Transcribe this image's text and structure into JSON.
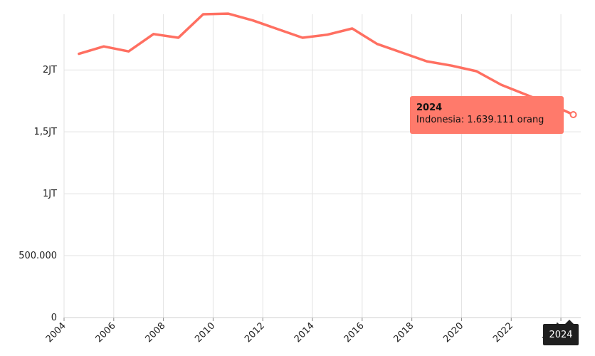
{
  "chart_data": {
    "type": "line",
    "x": [
      2004.6,
      2005.6,
      2006.6,
      2007.6,
      2008.6,
      2009.6,
      2010.6,
      2011.6,
      2012.6,
      2013.6,
      2014.6,
      2015.6,
      2016.6,
      2017.6,
      2018.6,
      2019.6,
      2020.6,
      2021.6,
      2022.6,
      2023.6,
      2024.5
    ],
    "series": [
      {
        "name": "Indonesia",
        "color": "#ff6f61",
        "values": [
          2130000,
          2190000,
          2150000,
          2290000,
          2260000,
          2450000,
          2455000,
          2400000,
          2330000,
          2260000,
          2285000,
          2335000,
          2210000,
          2140000,
          2070000,
          2035000,
          1990000,
          1880000,
          1800000,
          1720000,
          1639111
        ]
      }
    ],
    "xlim": [
      2004,
      2024.8
    ],
    "ylim": [
      0,
      2450000
    ],
    "x_ticks": [
      {
        "value": 2004,
        "label": "2004"
      },
      {
        "value": 2006,
        "label": "2006"
      },
      {
        "value": 2008,
        "label": "2008"
      },
      {
        "value": 2010,
        "label": "2010"
      },
      {
        "value": 2012,
        "label": "2012"
      },
      {
        "value": 2014,
        "label": "2014"
      },
      {
        "value": 2016,
        "label": "2016"
      },
      {
        "value": 2018,
        "label": "2018"
      },
      {
        "value": 2020,
        "label": "2020"
      },
      {
        "value": 2022,
        "label": "2022"
      },
      {
        "value": 2024,
        "label": "2024"
      }
    ],
    "y_ticks": [
      {
        "value": 0,
        "label": "0"
      },
      {
        "value": 500000,
        "label": "500.000"
      },
      {
        "value": 1000000,
        "label": "1JT"
      },
      {
        "value": 1500000,
        "label": "1,5JT"
      },
      {
        "value": 2000000,
        "label": "2JT"
      }
    ],
    "grid": true,
    "legend": "none"
  },
  "tooltip": {
    "title": "2024",
    "body": "Indonesia: 1.639.111  orang"
  },
  "x_badge": "2024"
}
